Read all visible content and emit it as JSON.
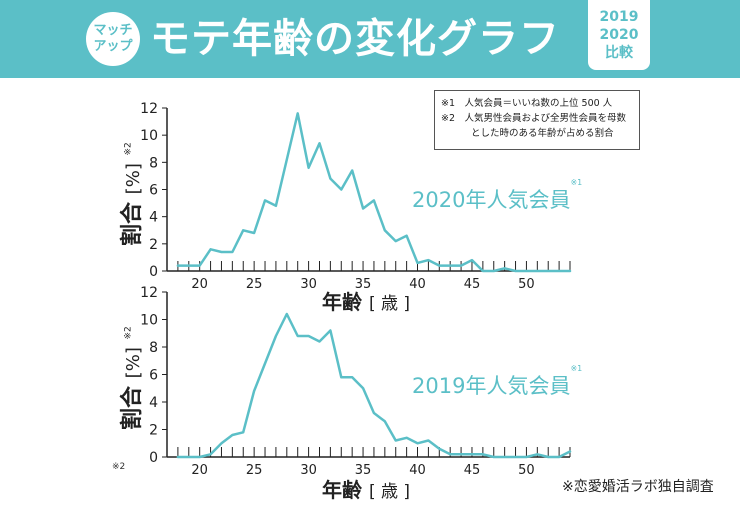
{
  "header": {
    "badge_line1": "マッチ",
    "badge_line2": "アップ",
    "title": "モテ年齢の変化グラフ",
    "year1": "2019",
    "year2": "2020",
    "compare": "比較"
  },
  "notes": {
    "note1": "※1　人気会員＝いいね数の上位 500 人",
    "note2a": "※2　人気男性会員および全男性会員を母数",
    "note2b": "とした時のある年齢が占める割合"
  },
  "axis_labels": {
    "y_title": "割合",
    "y_unit": "[%]",
    "y_note": "※2",
    "x_title": "年齢",
    "x_unit": "[ 歳 ]"
  },
  "footnote_mark": "※2",
  "source": "※恋愛婚活ラボ独自調査",
  "colors": {
    "accent": "#5bbfc7",
    "line": "#5bbfc7",
    "axis": "#222222",
    "text": "#222222"
  },
  "chart_data": [
    {
      "type": "line",
      "series_label": "2020年人気会員",
      "series_label_note": "※1",
      "xlabel": "年齢 [ 歳 ]",
      "ylabel": "割合 [%] ※2",
      "xlim": [
        17,
        54
      ],
      "ylim": [
        0,
        12
      ],
      "x_ticks": [
        20,
        25,
        30,
        35,
        40,
        45,
        50
      ],
      "y_ticks": [
        0,
        2,
        4,
        6,
        8,
        10,
        12
      ],
      "x": [
        18,
        19,
        20,
        21,
        22,
        23,
        24,
        25,
        26,
        27,
        28,
        29,
        30,
        31,
        32,
        33,
        34,
        35,
        36,
        37,
        38,
        39,
        40,
        41,
        42,
        43,
        44,
        45,
        46,
        47,
        48,
        49,
        50,
        51,
        52,
        53,
        54
      ],
      "values": [
        0.4,
        0.4,
        0.4,
        1.6,
        1.4,
        1.4,
        3.0,
        2.8,
        5.2,
        4.8,
        8.2,
        11.6,
        7.6,
        9.4,
        6.8,
        6.0,
        7.4,
        4.6,
        5.2,
        3.0,
        2.2,
        2.6,
        0.6,
        0.8,
        0.4,
        0.4,
        0.4,
        0.8,
        0.0,
        0.0,
        0.2,
        0.0,
        0.0,
        0.0,
        0.0,
        0.0,
        0.0
      ]
    },
    {
      "type": "line",
      "series_label": "2019年人気会員",
      "series_label_note": "※1",
      "xlabel": "年齢 [ 歳 ]",
      "ylabel": "割合 [%] ※2",
      "xlim": [
        17,
        54
      ],
      "ylim": [
        0,
        12
      ],
      "x_ticks": [
        20,
        25,
        30,
        35,
        40,
        45,
        50
      ],
      "y_ticks": [
        0,
        2,
        4,
        6,
        8,
        10,
        12
      ],
      "x": [
        18,
        19,
        20,
        21,
        22,
        23,
        24,
        25,
        26,
        27,
        28,
        29,
        30,
        31,
        32,
        33,
        34,
        35,
        36,
        37,
        38,
        39,
        40,
        41,
        42,
        43,
        44,
        45,
        46,
        47,
        48,
        49,
        50,
        51,
        52,
        53,
        54
      ],
      "values": [
        0.0,
        0.0,
        0.0,
        0.2,
        1.0,
        1.6,
        1.8,
        4.8,
        6.8,
        8.8,
        10.4,
        8.8,
        8.8,
        8.4,
        9.2,
        5.8,
        5.8,
        5.0,
        3.2,
        2.6,
        1.2,
        1.4,
        1.0,
        1.2,
        0.6,
        0.2,
        0.2,
        0.2,
        0.2,
        0.0,
        0.0,
        0.0,
        0.0,
        0.2,
        0.0,
        0.0,
        0.4
      ]
    }
  ]
}
